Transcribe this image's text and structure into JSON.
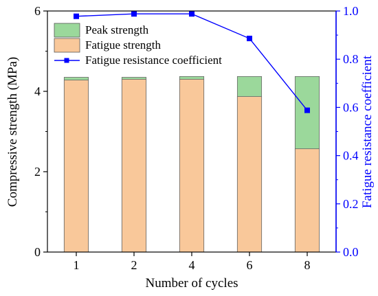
{
  "chart_data": {
    "type": "bar",
    "stacked": true,
    "categories": [
      "1",
      "2",
      "4",
      "6",
      "8"
    ],
    "xlabel": "Number of cycles",
    "ylabel": "Compressive strength (MPa)",
    "ylabel_right": "Fatigue resistance coefficient",
    "ylim": [
      0,
      6
    ],
    "ylim_right": [
      0.0,
      1.0
    ],
    "yticks": [
      "0",
      "2",
      "4",
      "6"
    ],
    "yticks_right": [
      "0.0",
      "0.2",
      "0.4",
      "0.6",
      "0.8",
      "1.0"
    ],
    "legend_position": "top-left",
    "series": [
      {
        "name": "Fatigue strength",
        "type": "bar",
        "color": "#f9c89a",
        "values": [
          4.28,
          4.3,
          4.3,
          3.87,
          2.57
        ]
      },
      {
        "name": "Peak strength",
        "type": "bar",
        "color": "#9bd89b",
        "values": [
          4.35,
          4.35,
          4.37,
          4.37,
          4.37
        ]
      },
      {
        "name": "Fatigue resistance coefficient",
        "type": "line",
        "axis": "right",
        "color": "#0000ff",
        "marker": "square",
        "values": [
          0.978,
          0.988,
          0.988,
          0.886,
          0.588
        ]
      }
    ]
  }
}
